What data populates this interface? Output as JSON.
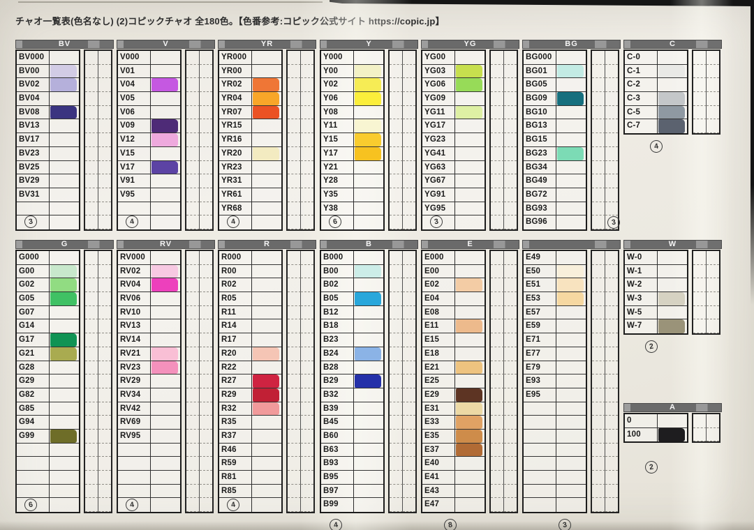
{
  "title": "チャオ一覧表(色名なし) (2)コピックチャオ 全180色。【色番参考:コピック公式サイト https://copic.jp】",
  "groups": [
    {
      "id": "BV",
      "label": "BV",
      "count": "3",
      "note_pos": "left",
      "rows": [
        {
          "code": "BV000"
        },
        {
          "code": "BV00",
          "swatch": "#d2cce5"
        },
        {
          "code": "BV02",
          "swatch": "#b5b0db"
        },
        {
          "code": "BV04"
        },
        {
          "code": "BV08",
          "swatch": "#3b3480"
        },
        {
          "code": "BV13"
        },
        {
          "code": "BV17"
        },
        {
          "code": "BV23"
        },
        {
          "code": "BV25"
        },
        {
          "code": "BV29"
        },
        {
          "code": "BV31"
        }
      ]
    },
    {
      "id": "V",
      "label": "V",
      "count": "4",
      "note_pos": "left",
      "rows": [
        {
          "code": "V000"
        },
        {
          "code": "V01"
        },
        {
          "code": "V04",
          "swatch": "#c558e1"
        },
        {
          "code": "V05"
        },
        {
          "code": "V06"
        },
        {
          "code": "V09",
          "swatch": "#4e2b77"
        },
        {
          "code": "V12",
          "swatch": "#eea9dd"
        },
        {
          "code": "V15"
        },
        {
          "code": "V17",
          "swatch": "#5c43a4"
        },
        {
          "code": "V91"
        },
        {
          "code": "V95"
        }
      ]
    },
    {
      "id": "YR",
      "label": "YR",
      "count": "4",
      "note_pos": "left",
      "rows": [
        {
          "code": "YR000"
        },
        {
          "code": "YR00"
        },
        {
          "code": "YR02",
          "swatch": "#ef7636"
        },
        {
          "code": "YR04",
          "swatch": "#f8a629"
        },
        {
          "code": "YR07",
          "swatch": "#eb5224"
        },
        {
          "code": "YR15"
        },
        {
          "code": "YR16"
        },
        {
          "code": "YR20",
          "swatch": "#f3ebc1"
        },
        {
          "code": "YR23"
        },
        {
          "code": "YR31"
        },
        {
          "code": "YR61"
        },
        {
          "code": "YR68"
        }
      ]
    },
    {
      "id": "Y",
      "label": "Y",
      "count": "6",
      "note_pos": "left",
      "rows": [
        {
          "code": "Y000"
        },
        {
          "code": "Y00",
          "swatch": "#f3f1c6"
        },
        {
          "code": "Y02",
          "swatch": "#f6ec55"
        },
        {
          "code": "Y06",
          "swatch": "#fbee3b"
        },
        {
          "code": "Y08"
        },
        {
          "code": "Y11",
          "swatch": "#f8f5d2"
        },
        {
          "code": "Y15",
          "swatch": "#f9cc2e"
        },
        {
          "code": "Y17",
          "swatch": "#f7c220"
        },
        {
          "code": "Y21"
        },
        {
          "code": "Y28"
        },
        {
          "code": "Y35"
        },
        {
          "code": "Y38"
        }
      ]
    },
    {
      "id": "YG",
      "label": "YG",
      "count": "3",
      "note_pos": "left",
      "rows": [
        {
          "code": "YG00"
        },
        {
          "code": "YG03",
          "swatch": "#c7df4e"
        },
        {
          "code": "YG06",
          "swatch": "#97db58"
        },
        {
          "code": "YG09"
        },
        {
          "code": "YG11",
          "swatch": "#def0a4"
        },
        {
          "code": "YG17"
        },
        {
          "code": "YG23"
        },
        {
          "code": "YG41"
        },
        {
          "code": "YG63"
        },
        {
          "code": "YG67"
        },
        {
          "code": "YG91"
        },
        {
          "code": "YG95"
        }
      ]
    },
    {
      "id": "BG",
      "label": "BG",
      "count": "3",
      "note_pos": "right",
      "rows": [
        {
          "code": "BG000"
        },
        {
          "code": "BG01",
          "swatch": "#c3ebe4"
        },
        {
          "code": "BG05"
        },
        {
          "code": "BG09",
          "swatch": "#166f7e"
        },
        {
          "code": "BG10"
        },
        {
          "code": "BG13"
        },
        {
          "code": "BG15"
        },
        {
          "code": "BG23",
          "swatch": "#7cdbb5"
        },
        {
          "code": "BG34"
        },
        {
          "code": "BG49"
        },
        {
          "code": "BG72"
        },
        {
          "code": "BG93"
        },
        {
          "code": "BG96"
        }
      ]
    },
    {
      "id": "C",
      "label": "C",
      "count": "4",
      "note_pos": "below",
      "rows": [
        {
          "code": "C-0"
        },
        {
          "code": "C-1",
          "swatch": "#e9e9e6"
        },
        {
          "code": "C-2"
        },
        {
          "code": "C-3",
          "swatch": "#c4c7c9"
        },
        {
          "code": "C-5",
          "swatch": "#8f99a2"
        },
        {
          "code": "C-7",
          "swatch": "#5b626f"
        }
      ]
    },
    {
      "id": "G",
      "label": "G",
      "count": "6",
      "note_pos": "left",
      "rows": [
        {
          "code": "G000"
        },
        {
          "code": "G00",
          "swatch": "#c8e8cc"
        },
        {
          "code": "G02",
          "swatch": "#91dc82"
        },
        {
          "code": "G05",
          "swatch": "#40c164"
        },
        {
          "code": "G07"
        },
        {
          "code": "G14"
        },
        {
          "code": "G17",
          "swatch": "#109354"
        },
        {
          "code": "G21",
          "swatch": "#a9ab50"
        },
        {
          "code": "G28"
        },
        {
          "code": "G29"
        },
        {
          "code": "G82"
        },
        {
          "code": "G85"
        },
        {
          "code": "G94"
        },
        {
          "code": "G99",
          "swatch": "#6e6d28"
        }
      ]
    },
    {
      "id": "RV",
      "label": "RV",
      "count": "4",
      "note_pos": "left",
      "rows": [
        {
          "code": "RV000"
        },
        {
          "code": "RV02",
          "swatch": "#f7c9e2"
        },
        {
          "code": "RV04",
          "swatch": "#ed40bc"
        },
        {
          "code": "RV06"
        },
        {
          "code": "RV10"
        },
        {
          "code": "RV13"
        },
        {
          "code": "RV14"
        },
        {
          "code": "RV21",
          "swatch": "#f9bfd5"
        },
        {
          "code": "RV23",
          "swatch": "#f491bc"
        },
        {
          "code": "RV29"
        },
        {
          "code": "RV34"
        },
        {
          "code": "RV42"
        },
        {
          "code": "RV69"
        },
        {
          "code": "RV95"
        }
      ]
    },
    {
      "id": "R",
      "label": "R",
      "count": "4",
      "note_pos": "left",
      "rows": [
        {
          "code": "R000"
        },
        {
          "code": "R00"
        },
        {
          "code": "R02"
        },
        {
          "code": "R05"
        },
        {
          "code": "R11"
        },
        {
          "code": "R14"
        },
        {
          "code": "R17"
        },
        {
          "code": "R20",
          "swatch": "#f5c5b5"
        },
        {
          "code": "R22"
        },
        {
          "code": "R27",
          "swatch": "#cf2341"
        },
        {
          "code": "R29",
          "swatch": "#c12035"
        },
        {
          "code": "R32",
          "swatch": "#f19a9b"
        },
        {
          "code": "R35"
        },
        {
          "code": "R37"
        },
        {
          "code": "R46"
        },
        {
          "code": "R59"
        },
        {
          "code": "R81"
        },
        {
          "code": "R85"
        }
      ]
    },
    {
      "id": "B",
      "label": "B",
      "count": "4",
      "note_pos": "below",
      "rows": [
        {
          "code": "B000"
        },
        {
          "code": "B00",
          "swatch": "#ccede8"
        },
        {
          "code": "B02"
        },
        {
          "code": "B05",
          "swatch": "#29a7db"
        },
        {
          "code": "B12"
        },
        {
          "code": "B18"
        },
        {
          "code": "B23"
        },
        {
          "code": "B24",
          "swatch": "#8bb3e6"
        },
        {
          "code": "B28"
        },
        {
          "code": "B29",
          "swatch": "#2531a9"
        },
        {
          "code": "B32"
        },
        {
          "code": "B39"
        },
        {
          "code": "B45"
        },
        {
          "code": "B60"
        },
        {
          "code": "B63"
        },
        {
          "code": "B93"
        },
        {
          "code": "B95"
        },
        {
          "code": "B97"
        },
        {
          "code": "B99"
        }
      ]
    },
    {
      "id": "E",
      "label": "E",
      "count": "8",
      "note_pos": "below",
      "rows": [
        {
          "code": "E000"
        },
        {
          "code": "E00"
        },
        {
          "code": "E02",
          "swatch": "#f3cca5"
        },
        {
          "code": "E04"
        },
        {
          "code": "E08"
        },
        {
          "code": "E11",
          "swatch": "#edba8c"
        },
        {
          "code": "E15"
        },
        {
          "code": "E18"
        },
        {
          "code": "E21",
          "swatch": "#eec37f"
        },
        {
          "code": "E25"
        },
        {
          "code": "E29",
          "swatch": "#5d3423"
        },
        {
          "code": "E31",
          "swatch": "#ecd9a5"
        },
        {
          "code": "E33",
          "swatch": "#e0a264"
        },
        {
          "code": "E35",
          "swatch": "#ce8c4a"
        },
        {
          "code": "E37",
          "swatch": "#b16b35"
        },
        {
          "code": "E40"
        },
        {
          "code": "E41"
        },
        {
          "code": "E43"
        },
        {
          "code": "E47"
        }
      ]
    },
    {
      "id": "E2",
      "label": "",
      "count": "3",
      "note_pos": "below",
      "rows": [
        {
          "code": "E49"
        },
        {
          "code": "E50",
          "swatch": "#f8efdb"
        },
        {
          "code": "E51",
          "swatch": "#f8e3bf"
        },
        {
          "code": "E53",
          "swatch": "#f6d8a1"
        },
        {
          "code": "E57"
        },
        {
          "code": "E59"
        },
        {
          "code": "E71"
        },
        {
          "code": "E77"
        },
        {
          "code": "E79"
        },
        {
          "code": "E93"
        },
        {
          "code": "E95"
        }
      ]
    },
    {
      "id": "W",
      "label": "W",
      "count": "2",
      "note_pos": "below",
      "rows": [
        {
          "code": "W-0"
        },
        {
          "code": "W-1"
        },
        {
          "code": "W-2"
        },
        {
          "code": "W-3",
          "swatch": "#d6d2c2"
        },
        {
          "code": "W-5"
        },
        {
          "code": "W-7",
          "swatch": "#9a9379"
        }
      ]
    },
    {
      "id": "A",
      "label": "A",
      "count": "2",
      "note_pos": "below",
      "rows": [
        {
          "code": "0"
        },
        {
          "code": "100",
          "swatch": "#1e1d1f"
        }
      ]
    }
  ]
}
